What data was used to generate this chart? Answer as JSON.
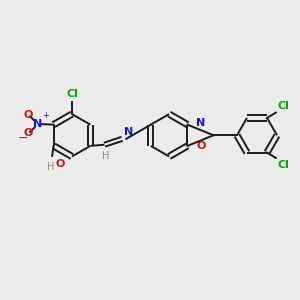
{
  "bg_color": "#ebebeb",
  "bond_color": "#1a1a1a",
  "lw": 1.4,
  "colors": {
    "N": "#1414cc",
    "O": "#cc1414",
    "Cl": "#00aa00",
    "H": "#888888",
    "bond": "#1a1a1a"
  },
  "r_hex": 0.72,
  "r_right": 0.68
}
